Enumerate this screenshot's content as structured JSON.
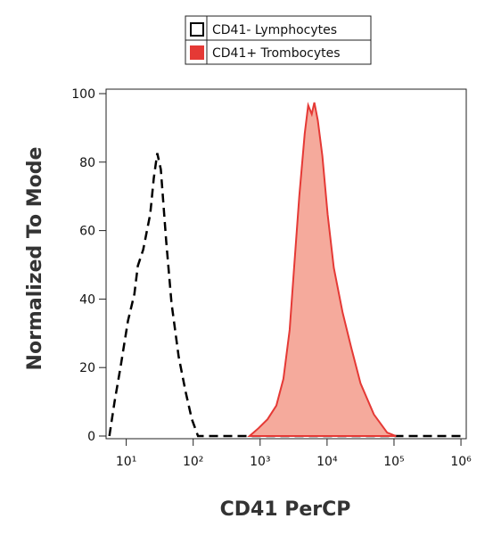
{
  "chart_data": {
    "type": "histogram-overlay",
    "x_label": "CD41 PerCP",
    "y_label": "Normalized To Mode",
    "x_scale": "log",
    "xlim": [
      5,
      1200000
    ],
    "ylim": [
      0,
      104
    ],
    "xticks": [
      {
        "value": 10,
        "label": "10¹"
      },
      {
        "value": 100,
        "label": "10²"
      },
      {
        "value": 1000,
        "label": "10³"
      },
      {
        "value": 10000,
        "label": "10⁴"
      },
      {
        "value": 100000,
        "label": "10⁵"
      },
      {
        "value": 1000000,
        "label": "10⁶"
      }
    ],
    "yticks": [
      0,
      20,
      40,
      60,
      80,
      100
    ],
    "series": [
      {
        "name": "CD41- Lymphocytes",
        "color": "#000000",
        "style": "dashed",
        "filled": false,
        "x": [
          5.6,
          6.7,
          8.3,
          10.6,
          13.2,
          14.9,
          17.9,
          22.8,
          25.8,
          29.1,
          32.9,
          39.5,
          47.5,
          60.6,
          77.4,
          95.6,
          118,
          1100000
        ],
        "values": [
          0,
          10,
          20.6,
          33.6,
          41.4,
          49.7,
          54.4,
          64.8,
          75.3,
          82.6,
          77.9,
          57,
          38.8,
          23.2,
          12.8,
          4.9,
          0,
          0
        ]
      },
      {
        "name": "CD41+ Trombocytes",
        "color": "#e53935",
        "fill": "#f5aa9c",
        "style": "solid",
        "filled": true,
        "x": [
          695,
          947,
          1290,
          1750,
          2230,
          2760,
          3220,
          3850,
          4630,
          5220,
          5900,
          6460,
          7280,
          8510,
          10200,
          12600,
          17000,
          23000,
          31600,
          50000,
          79000,
          107000
        ],
        "values": [
          0,
          2.3,
          4.9,
          8.9,
          16.7,
          31,
          49.2,
          70,
          88.3,
          96.6,
          94,
          97.4,
          92.2,
          81.8,
          64.8,
          49.2,
          36.2,
          25.8,
          15.4,
          6.3,
          1,
          0
        ]
      }
    ]
  }
}
